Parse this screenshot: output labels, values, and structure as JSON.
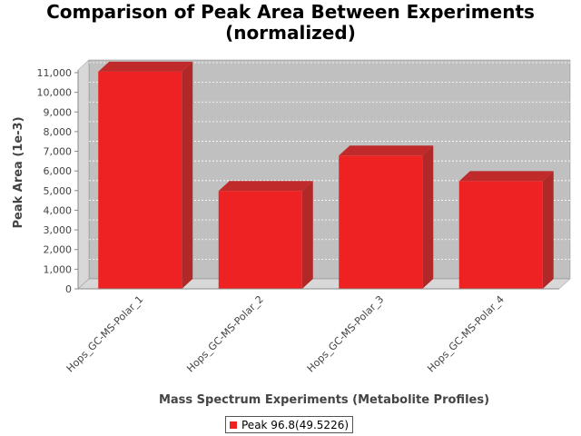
{
  "chart_data": {
    "type": "bar",
    "title_line1": "Comparison of Peak Area Between Experiments",
    "title_line2": "(normalized)",
    "xlabel": "Mass Spectrum Experiments (Metabolite Profiles)",
    "ylabel": "Peak Area (1e-3)",
    "categories": [
      "Hops_GC-MS-Polar_1",
      "Hops_GC-MS-Polar_2",
      "Hops_GC-MS-Polar_3",
      "Hops_GC-MS-Polar_4"
    ],
    "series": [
      {
        "name": "Peak 96.8(49.5226)",
        "values": [
          11050,
          4980,
          6780,
          5480
        ]
      }
    ],
    "ylim": [
      0,
      11000
    ],
    "yticks": [
      0,
      1000,
      2000,
      3000,
      4000,
      5000,
      6000,
      7000,
      8000,
      9000,
      10000,
      11000
    ],
    "ytick_labels": [
      "0",
      "1,000",
      "2,000",
      "3,000",
      "4,000",
      "5,000",
      "6,000",
      "7,000",
      "8,000",
      "9,000",
      "10,000",
      "11,000"
    ],
    "grid": true,
    "legend_position": "bottom",
    "colors": {
      "bar": "#ee2222",
      "bar_top": "#c02a2a",
      "bar_side": "#b02828",
      "plot_bg": "#c0c0c0",
      "plot_wall": "#d8d8d8"
    }
  }
}
